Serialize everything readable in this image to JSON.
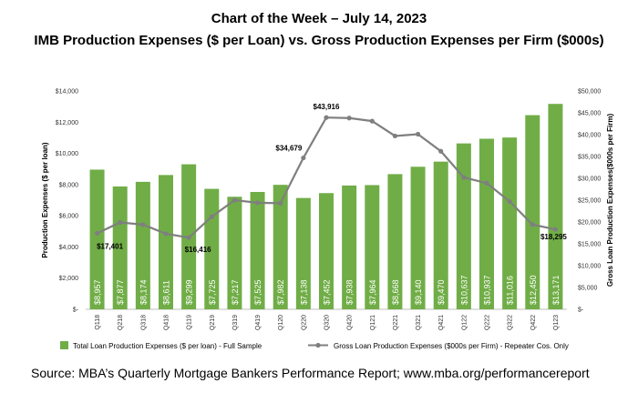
{
  "chart_data": {
    "type": "bar",
    "title": "Chart of the Week – July 14, 2023",
    "subtitle": "IMB Production Expenses ($ per Loan) vs. Gross Production Expenses per Firm ($000s)",
    "categories": [
      "Q118",
      "Q218",
      "Q318",
      "Q418",
      "Q119",
      "Q219",
      "Q319",
      "Q419",
      "Q120",
      "Q220",
      "Q320",
      "Q420",
      "Q121",
      "Q221",
      "Q321",
      "Q421",
      "Q122",
      "Q222",
      "Q322",
      "Q422",
      "Q123"
    ],
    "ylabel_left": "Production Expenses ($ per loan)",
    "ylabel_right": "Gross Loan Production Expenses($000s per Firm)",
    "ylim_left": [
      0,
      14000
    ],
    "ylim_right": [
      0,
      50000
    ],
    "yticks_left": [
      "$-",
      "$2,000",
      "$4,000",
      "$6,000",
      "$8,000",
      "$10,000",
      "$12,000",
      "$14,000"
    ],
    "yticks_right": [
      "$-",
      "$5,000",
      "$10,000",
      "$15,000",
      "$20,000",
      "$25,000",
      "$30,000",
      "$35,000",
      "$40,000",
      "$45,000",
      "$50,000"
    ],
    "series": [
      {
        "name": "Total Loan Production Expenses ($ per loan) - Full Sample",
        "type": "bar",
        "axis": "left",
        "color": "#70ad47",
        "values": [
          8957,
          7877,
          8174,
          8611,
          9299,
          7725,
          7217,
          7525,
          7982,
          7138,
          7452,
          7938,
          7964,
          8668,
          9140,
          9470,
          10637,
          10937,
          11016,
          12450,
          13171
        ],
        "labels": [
          "$8,957",
          "$7,877",
          "$8,174",
          "$8,611",
          "$9,299",
          "$7,725",
          "$7,217",
          "$7,525",
          "$7,982",
          "$7,138",
          "$7,452",
          "$7,938",
          "$7,964",
          "$8,668",
          "$9,140",
          "$9,470",
          "$10,637",
          "$10,937",
          "$11,016",
          "$12,450",
          "$13,171"
        ]
      },
      {
        "name": "Gross Loan Production Expenses ($000s per Firm) - Repeater Cos. Only",
        "type": "line",
        "axis": "right",
        "color": "#7f7f7f",
        "values": [
          17401,
          19900,
          19400,
          17300,
          16416,
          21200,
          25000,
          24400,
          24300,
          34679,
          43916,
          43800,
          43100,
          39700,
          40100,
          36200,
          30200,
          28900,
          24700,
          19400,
          18295
        ],
        "annotations": [
          {
            "index": 0,
            "text": "$17,401"
          },
          {
            "index": 4,
            "text": "$16,416"
          },
          {
            "index": 9,
            "text": "$34,679"
          },
          {
            "index": 10,
            "text": "$43,916"
          },
          {
            "index": 20,
            "text": "$18,295"
          }
        ]
      }
    ]
  },
  "source": "Source: MBA’s Quarterly Mortgage Bankers Performance Report; www.mba.org/performancereport"
}
